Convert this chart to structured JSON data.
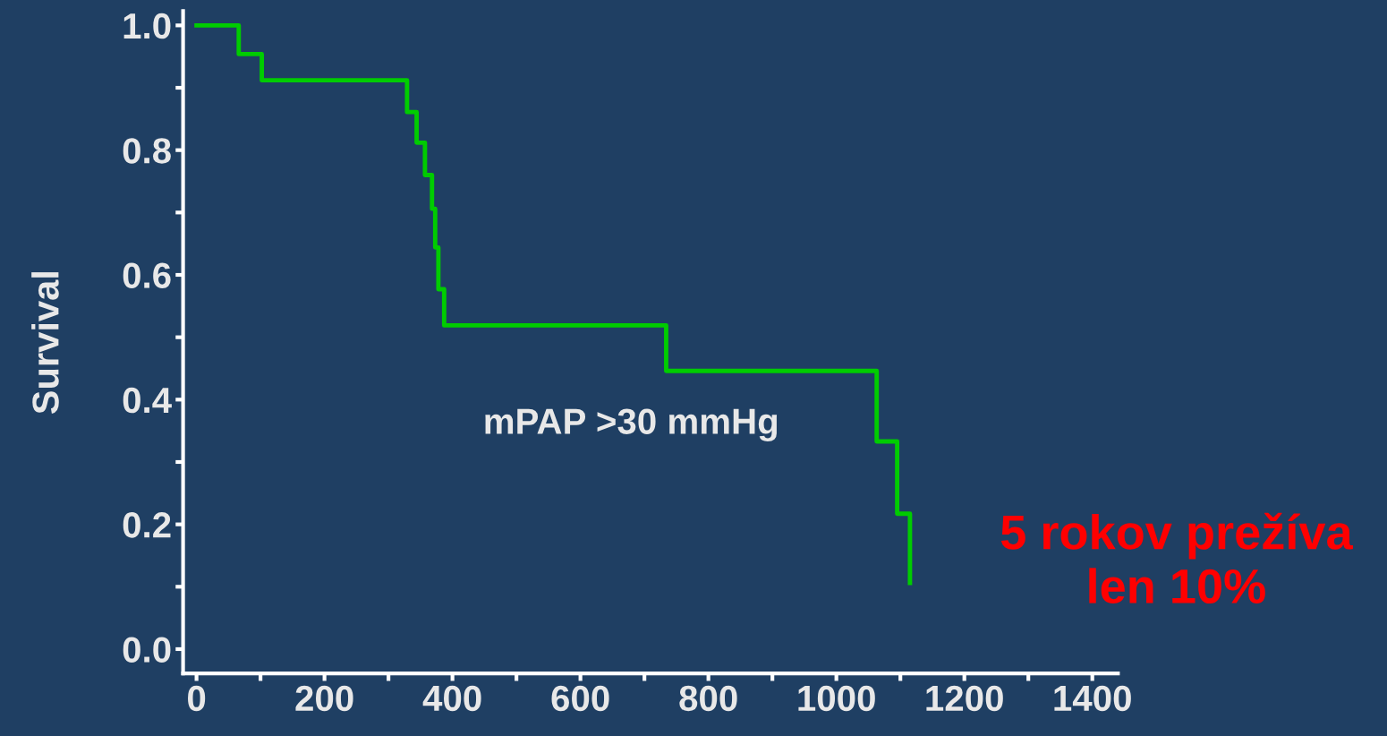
{
  "chart_data": {
    "type": "step",
    "ylabel": "Survival",
    "x": [
      0,
      66,
      102,
      329,
      344,
      357,
      368,
      373,
      378,
      387,
      734,
      1063,
      1095,
      1115
    ],
    "series": [
      {
        "color": "#00cc00",
        "values": [
          1.0,
          0.954,
          0.912,
          0.861,
          0.812,
          0.76,
          0.706,
          0.644,
          0.577,
          0.519,
          0.446,
          0.333,
          0.217,
          0.106
        ]
      }
    ],
    "xlim": [
      -21,
      1440
    ],
    "ylim": [
      -0.039,
      1.023
    ],
    "xticks": [
      0,
      {
        "value": 100,
        "label": null
      },
      200,
      {
        "value": 300,
        "label": null
      },
      400,
      {
        "value": 500,
        "label": null
      },
      600,
      {
        "value": 700,
        "label": null
      },
      800,
      {
        "value": 900,
        "label": null
      },
      1000,
      {
        "value": 1100,
        "label": null
      },
      1200,
      {
        "value": 1300,
        "label": null
      },
      1400
    ],
    "yticks": [
      {
        "value": 0,
        "label": "0.0"
      },
      {
        "value": 0.1,
        "label": null
      },
      {
        "value": 0.2,
        "label": "0.2"
      },
      {
        "value": 0.3,
        "label": null
      },
      {
        "value": 0.4,
        "label": "0.4"
      },
      {
        "value": 0.5,
        "label": null
      },
      {
        "value": 0.6,
        "label": "0.6"
      },
      {
        "value": 0.7,
        "label": null
      },
      {
        "value": 0.8,
        "label": "0.8"
      },
      {
        "value": 0.9,
        "label": null
      },
      {
        "value": 1.0,
        "label": "1.0"
      }
    ],
    "grid": false,
    "legend": false,
    "line_style": "solid",
    "marker": "none",
    "annotations": [
      "mPAP >30 mmHg",
      "5 rokov prežíva\nlen 10%"
    ]
  }
}
